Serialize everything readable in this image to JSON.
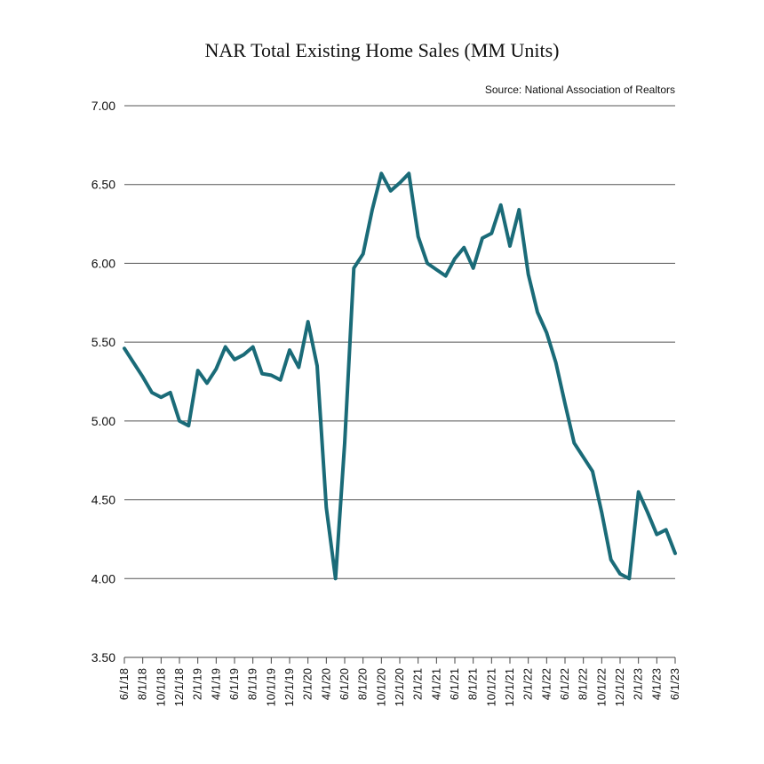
{
  "chart_data": {
    "type": "line",
    "title": "NAR Total Existing Home Sales (MM Units)",
    "source": "Source: National Association of Realtors",
    "ylim": [
      3.5,
      7.0
    ],
    "yticks": [
      "3.50",
      "4.00",
      "4.50",
      "5.00",
      "5.50",
      "6.00",
      "6.50",
      "7.00"
    ],
    "ytick_values": [
      3.5,
      4.0,
      4.5,
      5.0,
      5.5,
      6.0,
      6.5,
      7.0
    ],
    "grid": true,
    "xtick_labels": [
      "6/1/18",
      "8/1/18",
      "10/1/18",
      "12/1/18",
      "2/1/19",
      "4/1/19",
      "6/1/19",
      "8/1/19",
      "10/1/19",
      "12/1/19",
      "2/1/20",
      "4/1/20",
      "6/1/20",
      "8/1/20",
      "10/1/20",
      "12/1/20",
      "2/1/21",
      "4/1/21",
      "6/1/21",
      "8/1/21",
      "10/1/21",
      "12/1/21",
      "2/1/22",
      "4/1/22",
      "6/1/22",
      "8/1/22",
      "10/1/22",
      "12/1/22",
      "2/1/23",
      "4/1/23",
      "6/1/23"
    ],
    "line_color": "#1a6b78",
    "series": [
      {
        "values": [
          5.46,
          5.37,
          5.28,
          5.18,
          5.15,
          5.18,
          5.0,
          4.97,
          5.32,
          5.24,
          5.33,
          5.47,
          5.39,
          5.42,
          5.47,
          5.3,
          5.29,
          5.26,
          5.45,
          5.34,
          5.63,
          5.35,
          4.45,
          4.0,
          4.86,
          5.97,
          6.06,
          6.34,
          6.57,
          6.46,
          6.51,
          6.57,
          6.17,
          6.0,
          5.96,
          5.92,
          6.03,
          6.1,
          5.97,
          6.16,
          6.19,
          6.37,
          6.11,
          6.34,
          5.93,
          5.69,
          5.56,
          5.37,
          5.11,
          4.86,
          4.77,
          4.68,
          4.42,
          4.12,
          4.03,
          4.0,
          4.55,
          4.42,
          4.28,
          4.31,
          4.16
        ]
      }
    ]
  }
}
